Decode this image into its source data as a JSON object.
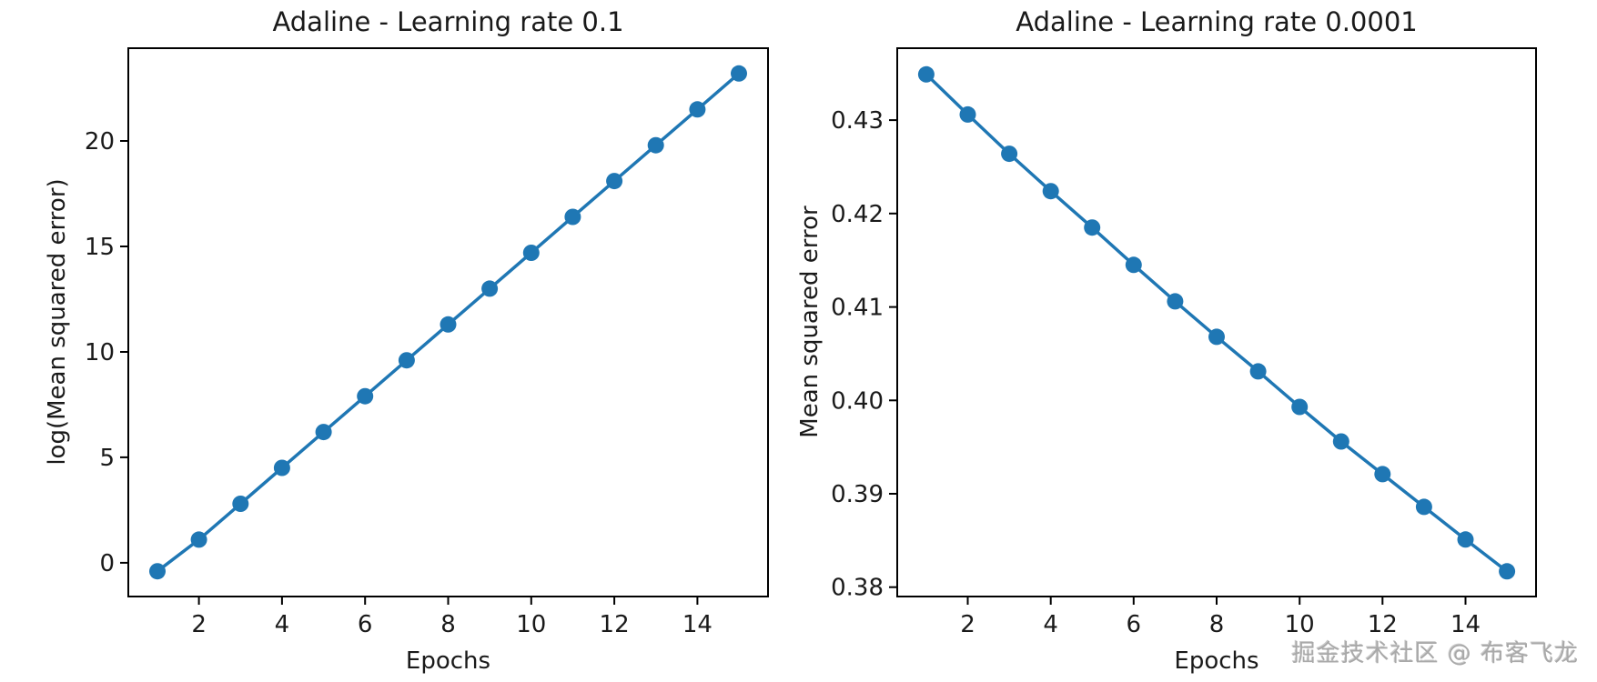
{
  "figure": {
    "background": "#ffffff"
  },
  "watermark": {
    "text": "掘金技术社区 @ 布客飞龙"
  },
  "chart_data": [
    {
      "type": "line",
      "title": "Adaline - Learning rate 0.1",
      "xlabel": "Epochs",
      "ylabel": "log(Mean squared error)",
      "x": [
        1,
        2,
        3,
        4,
        5,
        6,
        7,
        8,
        9,
        10,
        11,
        12,
        13,
        14,
        15
      ],
      "y": [
        -0.4,
        1.1,
        2.8,
        4.5,
        6.2,
        7.9,
        9.6,
        11.3,
        13.0,
        14.7,
        16.4,
        18.1,
        19.8,
        21.5,
        23.2
      ],
      "xlim": [
        0.3,
        15.7
      ],
      "ylim": [
        -1.6,
        24.4
      ],
      "xticks": [
        2,
        4,
        6,
        8,
        10,
        12,
        14
      ],
      "xtick_labels": [
        "2",
        "4",
        "6",
        "8",
        "10",
        "12",
        "14"
      ],
      "yticks": [
        0,
        5,
        10,
        15,
        20
      ],
      "ytick_labels": [
        "0",
        "5",
        "10",
        "15",
        "20"
      ],
      "line_color": "#1f77b4",
      "marker_color": "#1f77b4",
      "marker": "o",
      "grid": false,
      "legend": "none"
    },
    {
      "type": "line",
      "title": "Adaline - Learning rate 0.0001",
      "xlabel": "Epochs",
      "ylabel": "Mean squared error",
      "x": [
        1,
        2,
        3,
        4,
        5,
        6,
        7,
        8,
        9,
        10,
        11,
        12,
        13,
        14,
        15
      ],
      "y": [
        0.4349,
        0.4306,
        0.4264,
        0.4224,
        0.4185,
        0.4145,
        0.4106,
        0.4068,
        0.4031,
        0.3993,
        0.3956,
        0.3921,
        0.3886,
        0.3851,
        0.3817
      ],
      "xlim": [
        0.3,
        15.7
      ],
      "ylim": [
        0.379,
        0.4377
      ],
      "xticks": [
        2,
        4,
        6,
        8,
        10,
        12,
        14
      ],
      "xtick_labels": [
        "2",
        "4",
        "6",
        "8",
        "10",
        "12",
        "14"
      ],
      "yticks": [
        0.38,
        0.39,
        0.4,
        0.41,
        0.42,
        0.43
      ],
      "ytick_labels": [
        "0.38",
        "0.39",
        "0.40",
        "0.41",
        "0.42",
        "0.43"
      ],
      "line_color": "#1f77b4",
      "marker_color": "#1f77b4",
      "marker": "o",
      "grid": false,
      "legend": "none"
    }
  ]
}
